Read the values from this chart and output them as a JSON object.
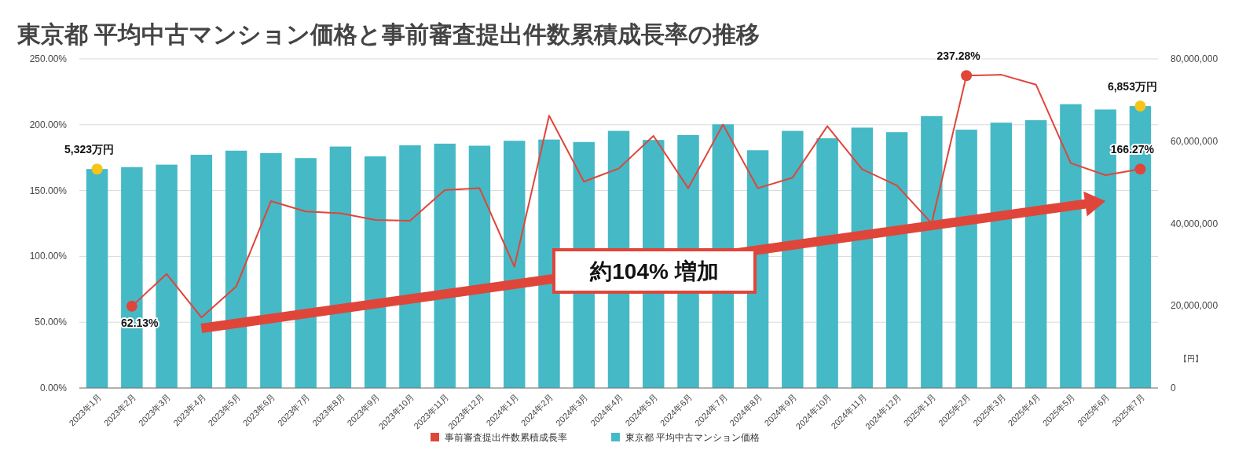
{
  "chart_data": {
    "type": "bar",
    "title": "東京都 平均中古マンション価格と事前審査提出件数累積成長率の推移",
    "categories": [
      "2023年1月",
      "2023年2月",
      "2023年3月",
      "2023年4月",
      "2023年5月",
      "2023年6月",
      "2023年7月",
      "2023年8月",
      "2023年9月",
      "2023年10月",
      "2023年11月",
      "2023年12月",
      "2024年1月",
      "2024年2月",
      "2024年3月",
      "2024年4月",
      "2024年5月",
      "2024年6月",
      "2024年7月",
      "2024年8月",
      "2024年9月",
      "2024年10月",
      "2024年11月",
      "2024年12月",
      "2025年1月",
      "2025年2月",
      "2025年3月",
      "2025年4月",
      "2025年5月",
      "2025年6月",
      "2025年7月"
    ],
    "series": [
      {
        "name": "事前審査提出件数累積成長率",
        "type": "line",
        "axis": "y",
        "color": "#e0453a",
        "values": [
          null,
          62.13,
          86.6,
          53.6,
          77.1,
          142,
          134.1,
          132.8,
          127.7,
          127.1,
          150.4,
          151.8,
          92.2,
          206.9,
          156.8,
          166.7,
          191.5,
          151.8,
          200.1,
          151.8,
          159.8,
          198.9,
          166.2,
          153.9,
          125.1,
          237.28,
          238,
          230.5,
          170.9,
          161.7,
          166.27
        ],
        "value_labels": [
          null,
          "62.13%",
          null,
          null,
          null,
          null,
          null,
          null,
          null,
          null,
          null,
          null,
          null,
          null,
          null,
          null,
          null,
          null,
          null,
          null,
          null,
          null,
          null,
          null,
          null,
          "237.28%",
          null,
          null,
          null,
          null,
          "166.27%"
        ]
      },
      {
        "name": "東京都 平均中古マンション価格",
        "axis": "y2",
        "color": "#45b9c6",
        "values": [
          53230000,
          53700000,
          54300000,
          56700000,
          57700000,
          57100000,
          55900000,
          58700000,
          56300000,
          59000000,
          59400000,
          58900000,
          60100000,
          60400000,
          59800000,
          62500000,
          60300000,
          61500000,
          64100000,
          57800000,
          62500000,
          60700000,
          63300000,
          62200000,
          66100000,
          62800000,
          64500000,
          65100000,
          69000000,
          67700000,
          68530000
        ]
      },
      {
        "type": "scatter",
        "axis": "y2",
        "color": "#f5c518",
        "marker": "circle",
        "values": [
          53230000,
          null,
          null,
          null,
          null,
          null,
          null,
          null,
          null,
          null,
          null,
          null,
          null,
          null,
          null,
          null,
          null,
          null,
          null,
          null,
          null,
          null,
          null,
          null,
          null,
          null,
          null,
          null,
          null,
          null,
          68530000
        ]
      }
    ],
    "ylim": [
      0,
      250
    ],
    "yticks": [
      {
        "value": 0,
        "label": "0.00%"
      },
      {
        "value": 50,
        "label": "50.00%"
      },
      {
        "value": 100,
        "label": "100.00%"
      },
      {
        "value": 150,
        "label": "150.00%"
      },
      {
        "value": 200,
        "label": "200.00%"
      },
      {
        "value": 250,
        "label": "250.00%"
      }
    ],
    "y2lim": [
      0,
      80000000
    ],
    "y2ticks": [
      {
        "value": 0,
        "label": "0"
      },
      {
        "value": 20000000,
        "label": "20,000,000"
      },
      {
        "value": 40000000,
        "label": "40,000,000"
      },
      {
        "value": 60000000,
        "label": "60,000,000"
      },
      {
        "value": 80000000,
        "label": "80,000,000"
      }
    ],
    "y2label": "【円】",
    "annotations": [
      "約104% 増加",
      "5,323万円",
      "6,853万円"
    ],
    "grid": "y",
    "legend": "bottom",
    "marker": "none"
  }
}
